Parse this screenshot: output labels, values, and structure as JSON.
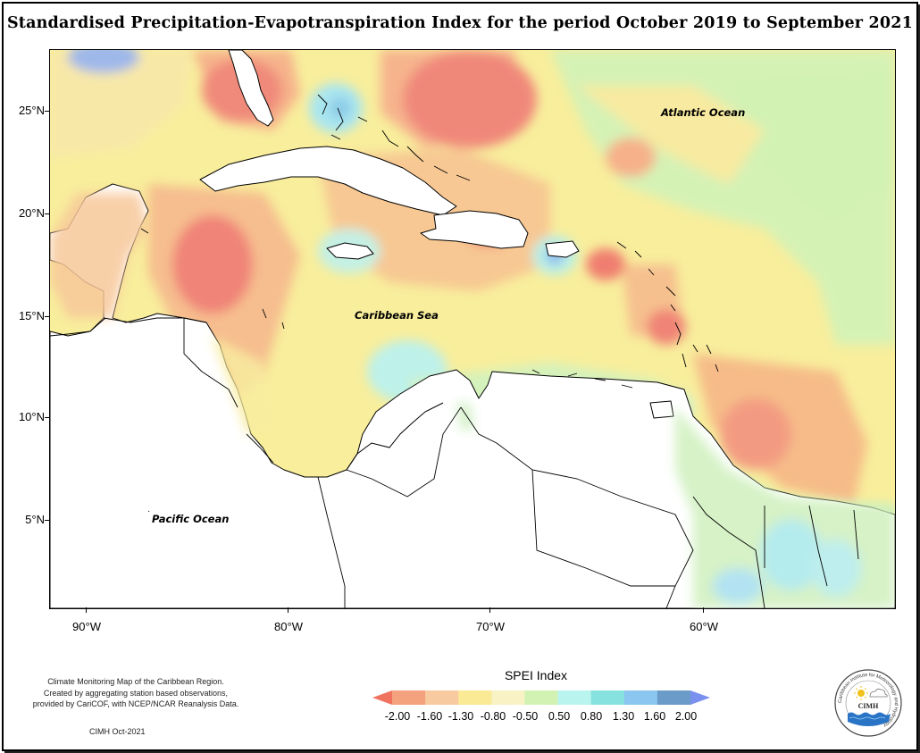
{
  "title": "Standardised Precipitation-Evapotranspiration Index for the period October 2019 to September 2021",
  "map": {
    "latitude_labels": [
      "25°N",
      "20°N",
      "15°N",
      "10°N",
      "5°N"
    ],
    "longitude_labels": [
      "90°W",
      "80°W",
      "70°W",
      "60°W"
    ],
    "ocean_labels": {
      "atlantic": "Atlantic Ocean",
      "caribbean": "Caribbean Sea",
      "pacific": "Pacific Ocean"
    }
  },
  "legend": {
    "title": "SPEI Index",
    "labels": [
      "-2.00",
      "-1.60",
      "-1.30",
      "-0.80",
      "-0.50",
      "0.50",
      "0.80",
      "1.30",
      "1.60",
      "2.00"
    ],
    "colors": [
      "#f0735f",
      "#f4a27e",
      "#f8caa0",
      "#faea95",
      "#f8f2c4",
      "#d2f2b4",
      "#baf4ee",
      "#86e2de",
      "#8ac6ef",
      "#6b9cc9",
      "#7a90ee"
    ]
  },
  "credits": {
    "line1": "Climate Monitoring Map of the Caribbean Region.",
    "line2": "Created by aggregating station based observations,",
    "line3": "provided by CariCOF, with NCEP/NCAR Reanalysis Data.",
    "date": "CIMH Oct-2021"
  },
  "logo": {
    "text": "CIMH",
    "ring_text": "Caribbean Institute for Meteorology and Hydrology"
  }
}
